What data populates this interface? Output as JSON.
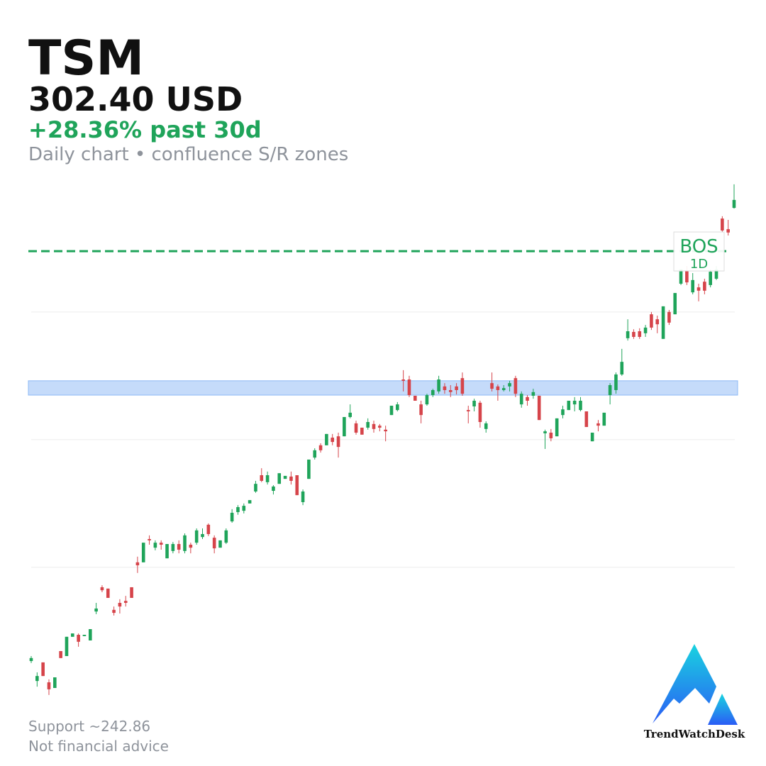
{
  "chart_data": {
    "type": "candlestick",
    "title": "TSM",
    "price": "302.40 USD",
    "change": "+28.36% past 30d",
    "subtitle": "Daily chart • confluence S/R zones",
    "footer": [
      "Support ~242.86",
      "Not financial advice"
    ],
    "brand": "TrendWatchDesk",
    "up_color": "#1fa45a",
    "down_color": "#d6444a",
    "ylim": [
      149.2,
      309.2
    ],
    "grid_levels": [
      268.7,
      230.3,
      191.9
    ],
    "zone": [
      243.7,
      248.0
    ],
    "bos": {
      "level": 287.0,
      "label": "BOS",
      "timeframe": "1D",
      "color": "#1fa45a"
    },
    "ohlc": [
      [
        163.7,
        165.2,
        163.1,
        164.6
      ],
      [
        157.7,
        160.3,
        156.0,
        159.2
      ],
      [
        163.3,
        163.3,
        159.2,
        159.2
      ],
      [
        157.3,
        158.2,
        153.5,
        155.2
      ],
      [
        155.6,
        158.8,
        155.6,
        158.8
      ],
      [
        166.7,
        166.7,
        164.6,
        164.6
      ],
      [
        165.2,
        171.0,
        165.2,
        171.0
      ],
      [
        171.0,
        172.0,
        171.0,
        172.0
      ],
      [
        171.6,
        172.0,
        168.0,
        169.5
      ],
      [
        171.2,
        171.6,
        171.2,
        171.6
      ],
      [
        169.9,
        173.3,
        169.9,
        173.3
      ],
      [
        178.6,
        181.2,
        177.8,
        179.5
      ],
      [
        185.9,
        186.5,
        184.4,
        185.0
      ],
      [
        185.5,
        185.5,
        182.7,
        182.7
      ],
      [
        179.1,
        180.1,
        177.4,
        178.2
      ],
      [
        181.2,
        182.3,
        178.0,
        180.1
      ],
      [
        181.8,
        183.3,
        180.1,
        181.2
      ],
      [
        185.9,
        185.9,
        182.7,
        182.7
      ],
      [
        193.4,
        195.1,
        190.2,
        192.5
      ],
      [
        193.4,
        199.3,
        193.4,
        199.3
      ],
      [
        200.4,
        201.5,
        198.7,
        200.0
      ],
      [
        197.8,
        200.0,
        197.0,
        199.3
      ],
      [
        199.3,
        200.0,
        197.2,
        198.7
      ],
      [
        194.6,
        198.9,
        194.6,
        198.9
      ],
      [
        196.8,
        199.5,
        196.1,
        198.9
      ],
      [
        198.9,
        200.0,
        196.1,
        197.2
      ],
      [
        196.8,
        202.1,
        196.1,
        201.5
      ],
      [
        198.7,
        199.3,
        196.1,
        197.8
      ],
      [
        199.3,
        203.6,
        198.7,
        203.0
      ],
      [
        201.0,
        203.6,
        200.4,
        201.9
      ],
      [
        204.7,
        205.1,
        201.3,
        201.9
      ],
      [
        200.8,
        201.5,
        196.1,
        197.6
      ],
      [
        197.8,
        200.0,
        197.8,
        200.0
      ],
      [
        199.3,
        203.6,
        198.9,
        203.0
      ],
      [
        205.7,
        209.4,
        205.3,
        208.3
      ],
      [
        208.5,
        210.6,
        207.7,
        210.0
      ],
      [
        208.9,
        211.1,
        208.1,
        210.4
      ],
      [
        211.1,
        212.1,
        211.1,
        212.1
      ],
      [
        214.7,
        217.9,
        214.3,
        217.0
      ],
      [
        219.6,
        221.7,
        217.5,
        217.9
      ],
      [
        217.5,
        220.7,
        216.8,
        219.6
      ],
      [
        214.9,
        216.6,
        213.8,
        216.2
      ],
      [
        217.0,
        220.2,
        217.0,
        220.2
      ],
      [
        218.5,
        219.4,
        218.5,
        219.4
      ],
      [
        219.2,
        220.7,
        216.8,
        217.9
      ],
      [
        219.6,
        219.6,
        213.6,
        213.6
      ],
      [
        211.5,
        215.3,
        210.6,
        214.7
      ],
      [
        218.5,
        224.3,
        218.5,
        224.3
      ],
      [
        224.9,
        227.7,
        224.3,
        227.1
      ],
      [
        228.6,
        229.2,
        226.4,
        227.1
      ],
      [
        228.6,
        232.0,
        228.6,
        232.0
      ],
      [
        230.9,
        232.0,
        228.6,
        229.6
      ],
      [
        231.3,
        232.4,
        224.9,
        228.1
      ],
      [
        231.3,
        237.1,
        231.3,
        237.1
      ],
      [
        237.1,
        240.9,
        236.7,
        238.4
      ],
      [
        235.2,
        236.0,
        231.8,
        232.4
      ],
      [
        233.9,
        233.9,
        231.8,
        231.8
      ],
      [
        233.9,
        236.7,
        233.3,
        235.6
      ],
      [
        235.0,
        236.0,
        232.4,
        233.5
      ],
      [
        234.5,
        235.0,
        232.8,
        233.9
      ],
      [
        233.3,
        234.5,
        229.8,
        232.8
      ],
      [
        237.7,
        240.5,
        237.7,
        240.5
      ],
      [
        239.2,
        241.6,
        238.8,
        240.9
      ],
      [
        248.4,
        251.2,
        244.8,
        248.0
      ],
      [
        248.4,
        249.5,
        243.1,
        243.7
      ],
      [
        243.5,
        243.5,
        242.0,
        242.0
      ],
      [
        240.9,
        242.0,
        235.2,
        237.7
      ],
      [
        240.9,
        244.1,
        240.5,
        243.7
      ],
      [
        243.7,
        245.6,
        243.1,
        245.2
      ],
      [
        244.8,
        249.5,
        244.1,
        248.4
      ],
      [
        246.3,
        247.3,
        244.1,
        245.2
      ],
      [
        245.2,
        246.7,
        243.1,
        244.6
      ],
      [
        246.3,
        247.3,
        243.9,
        245.2
      ],
      [
        248.8,
        250.5,
        243.5,
        244.1
      ],
      [
        239.2,
        240.5,
        235.2,
        238.8
      ],
      [
        240.3,
        242.6,
        238.8,
        242.0
      ],
      [
        241.4,
        242.0,
        233.9,
        235.6
      ],
      [
        233.5,
        235.8,
        232.4,
        235.2
      ],
      [
        247.3,
        250.5,
        244.8,
        245.6
      ],
      [
        246.3,
        246.9,
        242.0,
        245.2
      ],
      [
        245.2,
        246.7,
        244.8,
        245.8
      ],
      [
        246.3,
        248.0,
        244.8,
        247.3
      ],
      [
        248.8,
        249.5,
        243.1,
        244.1
      ],
      [
        240.9,
        244.8,
        239.9,
        244.1
      ],
      [
        243.1,
        243.7,
        240.5,
        242.0
      ],
      [
        243.5,
        245.6,
        242.6,
        244.6
      ],
      [
        243.5,
        243.5,
        236.2,
        236.2
      ],
      [
        232.2,
        233.3,
        227.5,
        232.8
      ],
      [
        232.4,
        233.5,
        229.8,
        230.7
      ],
      [
        231.3,
        236.7,
        231.3,
        236.7
      ],
      [
        237.7,
        240.5,
        236.7,
        239.4
      ],
      [
        239.2,
        242.0,
        239.2,
        242.0
      ],
      [
        240.9,
        243.1,
        238.8,
        242.0
      ],
      [
        239.2,
        243.1,
        238.8,
        242.0
      ],
      [
        238.8,
        238.8,
        234.1,
        234.1
      ],
      [
        229.8,
        232.4,
        229.8,
        232.4
      ],
      [
        235.2,
        236.2,
        232.8,
        234.5
      ],
      [
        234.5,
        238.4,
        234.5,
        238.4
      ],
      [
        243.7,
        247.3,
        240.9,
        246.7
      ],
      [
        245.2,
        250.5,
        244.1,
        249.9
      ],
      [
        249.9,
        257.6,
        249.5,
        253.7
      ],
      [
        260.8,
        266.5,
        260.1,
        262.9
      ],
      [
        262.7,
        263.5,
        260.6,
        261.2
      ],
      [
        262.9,
        263.8,
        260.6,
        261.2
      ],
      [
        262.3,
        264.8,
        261.2,
        264.0
      ],
      [
        268.0,
        268.7,
        263.3,
        264.0
      ],
      [
        266.5,
        267.6,
        262.3,
        265.0
      ],
      [
        260.6,
        270.4,
        260.6,
        270.4
      ],
      [
        268.7,
        269.3,
        264.8,
        265.5
      ],
      [
        268.0,
        274.4,
        268.0,
        274.4
      ],
      [
        277.2,
        281.5,
        276.8,
        281.5
      ],
      [
        281.0,
        282.5,
        276.8,
        277.6
      ],
      [
        274.6,
        280.4,
        274.0,
        278.3
      ],
      [
        276.1,
        277.2,
        271.9,
        275.1
      ],
      [
        277.8,
        278.7,
        274.0,
        275.1
      ],
      [
        276.8,
        281.5,
        276.1,
        280.8
      ],
      [
        278.7,
        282.5,
        278.3,
        281.5
      ],
      [
        296.8,
        297.5,
        292.6,
        293.2
      ],
      [
        293.6,
        296.4,
        291.7,
        292.6
      ],
      [
        300.0,
        307.1,
        299.8,
        302.4
      ]
    ]
  }
}
